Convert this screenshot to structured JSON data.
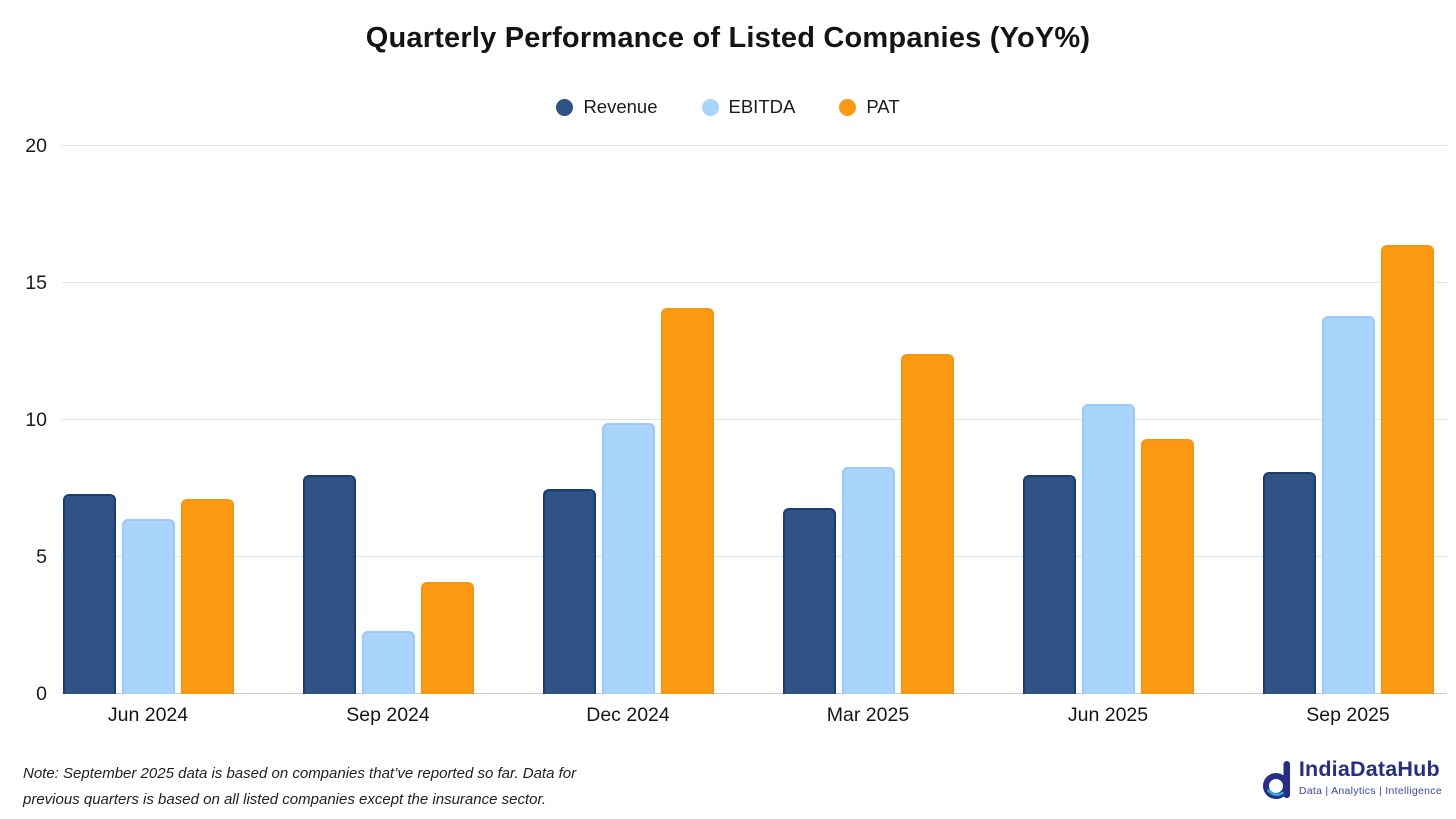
{
  "title": "Quarterly Performance of Listed Companies (YoY%)",
  "chart_data": {
    "type": "bar",
    "title": "Quarterly Performance of Listed Companies (YoY%)",
    "categories": [
      "Jun 2024",
      "Sep 2024",
      "Dec 2024",
      "Mar 2025",
      "Jun 2025",
      "Sep 2025"
    ],
    "series": [
      {
        "name": "Revenue",
        "color": "#2E5384",
        "border": "#1C3C6B",
        "values": [
          7.3,
          8.0,
          7.5,
          6.8,
          8.0,
          8.1
        ]
      },
      {
        "name": "EBITDA",
        "color": "#A9D5FC",
        "border": "#97CBF9",
        "values": [
          6.4,
          2.3,
          9.9,
          8.3,
          10.6,
          13.8
        ]
      },
      {
        "name": "PAT",
        "color": "#FB9913",
        "border": "#F89410",
        "values": [
          7.1,
          4.1,
          14.1,
          12.4,
          9.3,
          16.4
        ]
      }
    ],
    "xlabel": "",
    "ylabel": "",
    "ylim": [
      0,
      20
    ],
    "yticks": [
      0,
      5,
      10,
      15,
      20
    ],
    "grid": "horizontal",
    "legend_position": "top-center",
    "gridline_color": "#e4e4e4",
    "axis_line_color": "#cdcdcd"
  },
  "note": {
    "line1": "Note: September 2025 data is based on companies that’ve reported so far. Data for",
    "line2": "previous quarters is based on all listed companies except the insurance sector."
  },
  "logo": {
    "name": "IndiaDataHub",
    "tagline": "Data | Analytics | Intelligence",
    "brand_color": "#272E83",
    "tagline_color": "#3A46A5",
    "accent_color": "#2EA7DD"
  }
}
